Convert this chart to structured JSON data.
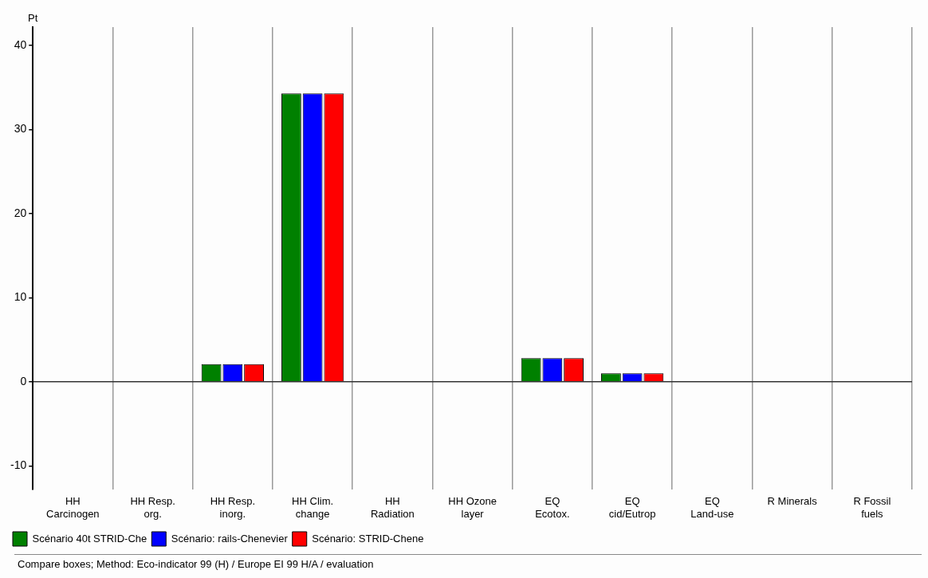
{
  "chart_data": {
    "type": "bar",
    "ylabel": "Pt",
    "categories": [
      "HH\nCarcinogen",
      "HH Resp.\norg.",
      "HH Resp.\ninorg.",
      "HH Clim.\nchange",
      "HH\nRadiation",
      "HH Ozone\nlayer",
      "EQ\nEcotox.",
      "EQ\ncid/Eutrop",
      "EQ\nLand-use",
      "R Minerals",
      "R Fossil\nfuels"
    ],
    "series": [
      {
        "name": "Scénario 40t STRID-Che",
        "color": "#008000",
        "values": [
          0,
          0,
          2.1,
          34.3,
          0,
          0,
          2.8,
          1.0,
          0,
          0,
          0
        ]
      },
      {
        "name": "Scénario: rails-Chenevier",
        "color": "#0000ff",
        "values": [
          0,
          0,
          2.1,
          34.3,
          0,
          0,
          2.8,
          1.0,
          0,
          0,
          0
        ]
      },
      {
        "name": "Scénario: STRID-Chene",
        "color": "#ff0000",
        "values": [
          0,
          0,
          2.1,
          34.3,
          0,
          0,
          2.8,
          1.0,
          0,
          0,
          0
        ]
      }
    ],
    "ylim": [
      -12.8,
      42.2
    ],
    "yticks": [
      -10,
      0,
      10,
      20,
      30,
      40
    ],
    "grid": "x",
    "legend": "bottom left",
    "annotations": [
      "Compare boxes;  Method: Eco-indicator 99 (H) /  Europe EI 99 H/A / evaluation"
    ]
  }
}
